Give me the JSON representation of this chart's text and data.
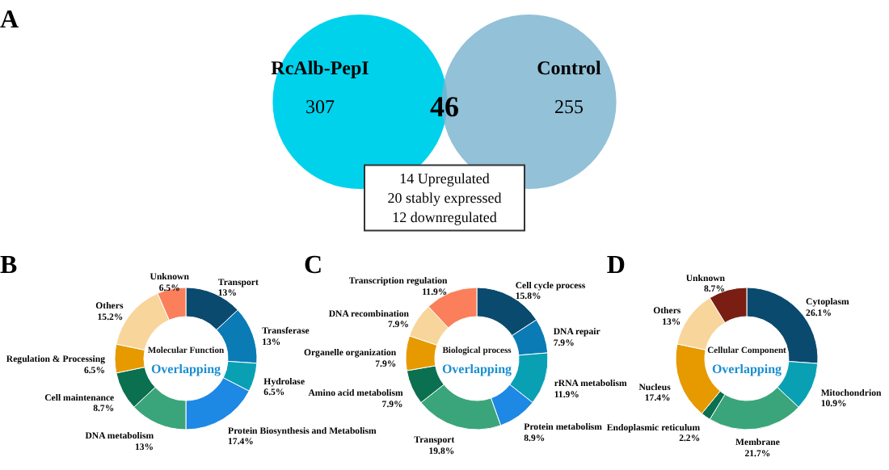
{
  "chart_data": [
    {
      "type": "other",
      "title": "A",
      "categories": [
        "RcAlb-PepI",
        "Control"
      ],
      "values": [
        307,
        255
      ],
      "value_labels": [
        "307",
        "255"
      ],
      "colors": [
        "#00d2ec",
        "#7ab3cf"
      ],
      "annotations": [
        "46",
        "14 Upregulated",
        "20 stably expressed",
        "12 downregulated"
      ]
    },
    {
      "type": "donut",
      "title": "B",
      "annotations": [
        "Molecular Function",
        "Overlapping"
      ],
      "categories": [
        "Transport",
        "Transferase",
        "Hydrolase",
        "Protein Biosynthesis and Metabolism",
        "DNA metabolism",
        "Cell maintenance",
        "Regulation & Processing",
        "Others",
        "Unknown"
      ],
      "values": [
        13,
        13,
        6.5,
        17.4,
        13,
        8.7,
        6.5,
        15.2,
        6.5
      ],
      "value_labels": [
        "13%",
        "13%",
        "6.5%",
        "17.4%",
        "13%",
        "8.7%",
        "6.5%",
        "15.2%",
        "6.5%"
      ],
      "colors": [
        "#0b4a6f",
        "#0a7bb5",
        "#0aa0b4",
        "#1e88e5",
        "#3aa57a",
        "#0a7050",
        "#e69a00",
        "#f8d59a",
        "#fa7f5a"
      ]
    },
    {
      "type": "donut",
      "title": "C",
      "annotations": [
        "Biological process",
        "Overlapping"
      ],
      "categories": [
        "Cell cycle process",
        "DNA repair",
        "rRNA metabolism",
        "Protein metabolism",
        "Transport",
        "Amino acid metabolism",
        "Organelle organization",
        "DNA recombination",
        "Transcription regulation"
      ],
      "values": [
        15.8,
        7.9,
        11.9,
        8.9,
        19.8,
        7.9,
        7.9,
        7.9,
        11.9
      ],
      "value_labels": [
        "15.8%",
        "7.9%",
        "11.9%",
        "8.9%",
        "19.8%",
        "7.9%",
        "7.9%",
        "7.9%",
        "11.9%"
      ],
      "colors": [
        "#0b4a6f",
        "#0a7bb5",
        "#0aa0b4",
        "#1e88e5",
        "#3aa57a",
        "#0a7050",
        "#e69a00",
        "#f8d59a",
        "#fa7f5a"
      ]
    },
    {
      "type": "donut",
      "title": "D",
      "annotations": [
        "Cellular Component",
        "Overlapping"
      ],
      "categories": [
        "Cytoplasm",
        "Mitochondrion",
        "Membrane",
        "Endoplasmic reticulum",
        "Nucleus",
        "Others",
        "Unknown"
      ],
      "values": [
        26.1,
        10.9,
        21.7,
        2.2,
        17.4,
        13,
        8.7
      ],
      "value_labels": [
        "26.1%",
        "10.9%",
        "21.7%",
        "2.2%",
        "17.4%",
        "13%",
        "8.7%"
      ],
      "colors": [
        "#0b4a6f",
        "#0aa0b4",
        "#3aa57a",
        "#0a7050",
        "#e69a00",
        "#f8d59a",
        "#7a1e14"
      ]
    }
  ]
}
